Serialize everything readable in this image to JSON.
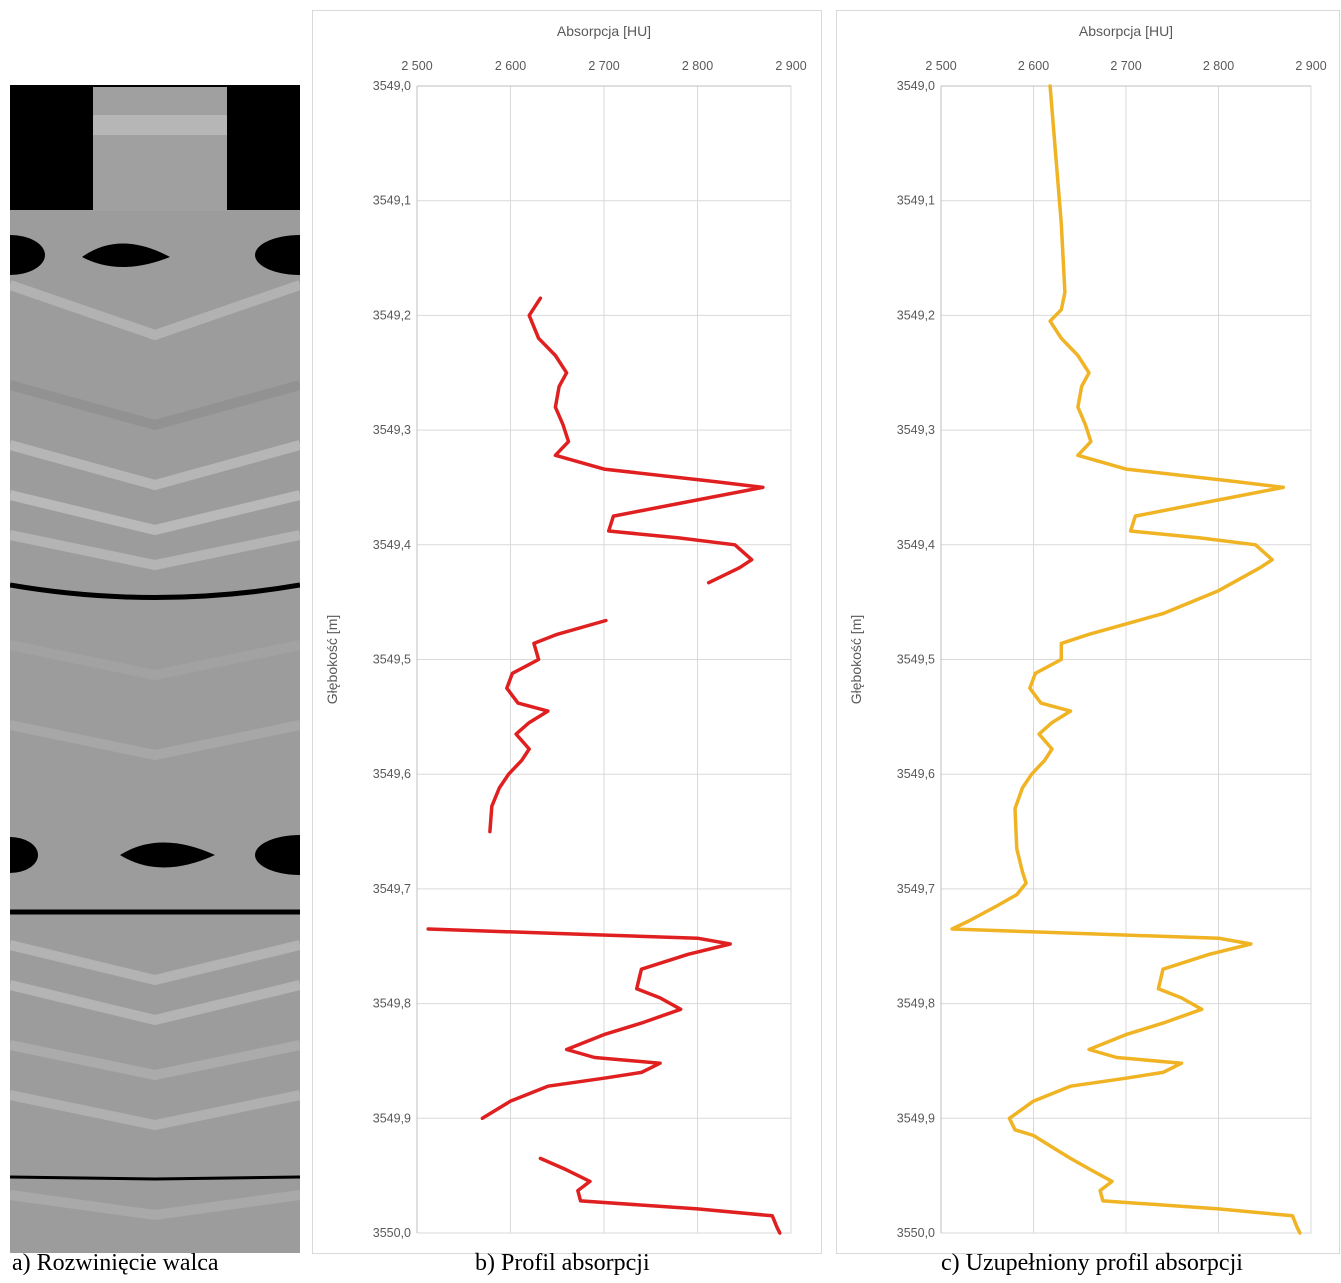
{
  "captions": {
    "a": "a) Rozwinięcie walca",
    "b": "b) Profil absorpcji",
    "c": "c) Uzupełniony profil absorpcji"
  },
  "chart_data": [
    {
      "type": "line",
      "xlabel": "Absorpcja [HU]",
      "ylabel": "Głębokość [m]",
      "xlim": [
        2500,
        2900
      ],
      "ylim": [
        3549.0,
        3550.0
      ],
      "y_reversed": true,
      "x_axis_position": "top",
      "x_ticks": [
        2500,
        2600,
        2700,
        2800,
        2900
      ],
      "x_tick_labels": [
        "2 500",
        "2 600",
        "2 700",
        "2 800",
        "2 900"
      ],
      "y_ticks": [
        3549.0,
        3549.1,
        3549.2,
        3549.3,
        3549.4,
        3549.5,
        3549.6,
        3549.7,
        3549.8,
        3549.9,
        3550.0
      ],
      "y_tick_labels": [
        "3549,0",
        "3549,1",
        "3549,2",
        "3549,3",
        "3549,4",
        "3549,5",
        "3549,6",
        "3549,7",
        "3549,8",
        "3549,9",
        "3550,0"
      ],
      "grid": true,
      "color": "#e02020",
      "series": [
        {
          "segments": [
            [
              [
                2632,
                3549.185
              ],
              [
                2620,
                3549.2
              ],
              [
                2630,
                3549.22
              ],
              [
                2648,
                3549.235
              ],
              [
                2660,
                3549.25
              ],
              [
                2652,
                3549.262
              ],
              [
                2648,
                3549.28
              ],
              [
                2656,
                3549.295
              ],
              [
                2662,
                3549.31
              ],
              [
                2648,
                3549.322
              ],
              [
                2700,
                3549.334
              ],
              [
                2820,
                3549.345
              ],
              [
                2870,
                3549.35
              ],
              [
                2780,
                3549.364
              ],
              [
                2710,
                3549.375
              ],
              [
                2705,
                3549.388
              ],
              [
                2780,
                3549.394
              ],
              [
                2840,
                3549.4
              ],
              [
                2858,
                3549.413
              ],
              [
                2845,
                3549.42
              ],
              [
                2812,
                3549.433
              ]
            ],
            [
              [
                2702,
                3549.466
              ],
              [
                2650,
                3549.478
              ],
              [
                2625,
                3549.486
              ],
              [
                2630,
                3549.5
              ],
              [
                2602,
                3549.512
              ],
              [
                2596,
                3549.525
              ],
              [
                2608,
                3549.538
              ],
              [
                2640,
                3549.545
              ],
              [
                2620,
                3549.555
              ],
              [
                2606,
                3549.565
              ],
              [
                2620,
                3549.578
              ],
              [
                2612,
                3549.588
              ],
              [
                2598,
                3549.6
              ],
              [
                2588,
                3549.612
              ],
              [
                2580,
                3549.628
              ],
              [
                2578,
                3549.65
              ]
            ],
            [
              [
                2512,
                3549.735
              ],
              [
                2690,
                3549.74
              ],
              [
                2800,
                3549.743
              ],
              [
                2835,
                3549.748
              ],
              [
                2790,
                3549.757
              ],
              [
                2740,
                3549.77
              ],
              [
                2735,
                3549.787
              ],
              [
                2760,
                3549.795
              ],
              [
                2782,
                3549.805
              ],
              [
                2740,
                3549.817
              ],
              [
                2700,
                3549.827
              ],
              [
                2660,
                3549.84
              ],
              [
                2690,
                3549.847
              ],
              [
                2760,
                3549.852
              ],
              [
                2740,
                3549.86
              ],
              [
                2700,
                3549.865
              ],
              [
                2640,
                3549.872
              ],
              [
                2600,
                3549.885
              ],
              [
                2570,
                3549.9
              ]
            ],
            [
              [
                2632,
                3549.935
              ],
              [
                2660,
                3549.945
              ],
              [
                2685,
                3549.955
              ],
              [
                2672,
                3549.963
              ],
              [
                2675,
                3549.972
              ],
              [
                2800,
                3549.979
              ],
              [
                2880,
                3549.985
              ],
              [
                2885,
                3549.995
              ],
              [
                2888,
                3550.0
              ]
            ]
          ]
        }
      ]
    },
    {
      "type": "line",
      "xlabel": "Absorpcja [HU]",
      "ylabel": "Głębokość [m]",
      "xlim": [
        2500,
        2900
      ],
      "ylim": [
        3549.0,
        3550.0
      ],
      "y_reversed": true,
      "x_axis_position": "top",
      "x_ticks": [
        2500,
        2600,
        2700,
        2800,
        2900
      ],
      "x_tick_labels": [
        "2 500",
        "2 600",
        "2 700",
        "2 800",
        "2 900"
      ],
      "y_ticks": [
        3549.0,
        3549.1,
        3549.2,
        3549.3,
        3549.4,
        3549.5,
        3549.6,
        3549.7,
        3549.8,
        3549.9,
        3550.0
      ],
      "y_tick_labels": [
        "3549,0",
        "3549,1",
        "3549,2",
        "3549,3",
        "3549,4",
        "3549,5",
        "3549,6",
        "3549,7",
        "3549,8",
        "3549,9",
        "3550,0"
      ],
      "grid": true,
      "color": "#f0b323",
      "series": [
        {
          "segments": [
            [
              [
                2618,
                3549.0
              ],
              [
                2624,
                3549.06
              ],
              [
                2630,
                3549.12
              ],
              [
                2634,
                3549.18
              ],
              [
                2630,
                3549.195
              ],
              [
                2618,
                3549.205
              ],
              [
                2630,
                3549.22
              ],
              [
                2648,
                3549.235
              ],
              [
                2660,
                3549.25
              ],
              [
                2652,
                3549.262
              ],
              [
                2648,
                3549.28
              ],
              [
                2656,
                3549.295
              ],
              [
                2662,
                3549.31
              ],
              [
                2648,
                3549.322
              ],
              [
                2700,
                3549.334
              ],
              [
                2820,
                3549.345
              ],
              [
                2870,
                3549.35
              ],
              [
                2780,
                3549.364
              ],
              [
                2710,
                3549.375
              ],
              [
                2705,
                3549.388
              ],
              [
                2780,
                3549.394
              ],
              [
                2840,
                3549.4
              ],
              [
                2858,
                3549.413
              ],
              [
                2845,
                3549.42
              ],
              [
                2800,
                3549.44
              ],
              [
                2740,
                3549.46
              ],
              [
                2660,
                3549.478
              ],
              [
                2630,
                3549.486
              ],
              [
                2630,
                3549.5
              ],
              [
                2602,
                3549.512
              ],
              [
                2596,
                3549.525
              ],
              [
                2608,
                3549.538
              ],
              [
                2640,
                3549.545
              ],
              [
                2620,
                3549.555
              ],
              [
                2606,
                3549.565
              ],
              [
                2620,
                3549.578
              ],
              [
                2612,
                3549.588
              ],
              [
                2598,
                3549.6
              ],
              [
                2588,
                3549.612
              ],
              [
                2580,
                3549.63
              ],
              [
                2582,
                3549.665
              ],
              [
                2588,
                3549.685
              ],
              [
                2592,
                3549.695
              ],
              [
                2582,
                3549.705
              ],
              [
                2560,
                3549.715
              ],
              [
                2530,
                3549.728
              ],
              [
                2512,
                3549.735
              ],
              [
                2690,
                3549.74
              ],
              [
                2800,
                3549.743
              ],
              [
                2835,
                3549.748
              ],
              [
                2790,
                3549.757
              ],
              [
                2740,
                3549.77
              ],
              [
                2735,
                3549.787
              ],
              [
                2760,
                3549.795
              ],
              [
                2782,
                3549.805
              ],
              [
                2740,
                3549.817
              ],
              [
                2700,
                3549.827
              ],
              [
                2660,
                3549.84
              ],
              [
                2690,
                3549.847
              ],
              [
                2760,
                3549.852
              ],
              [
                2740,
                3549.86
              ],
              [
                2700,
                3549.865
              ],
              [
                2640,
                3549.872
              ],
              [
                2600,
                3549.885
              ],
              [
                2574,
                3549.9
              ],
              [
                2580,
                3549.91
              ],
              [
                2600,
                3549.915
              ],
              [
                2620,
                3549.925
              ],
              [
                2640,
                3549.935
              ],
              [
                2662,
                3549.945
              ],
              [
                2685,
                3549.955
              ],
              [
                2672,
                3549.963
              ],
              [
                2675,
                3549.972
              ],
              [
                2800,
                3549.979
              ],
              [
                2880,
                3549.985
              ],
              [
                2885,
                3549.995
              ],
              [
                2888,
                3550.0
              ]
            ]
          ]
        }
      ]
    }
  ]
}
